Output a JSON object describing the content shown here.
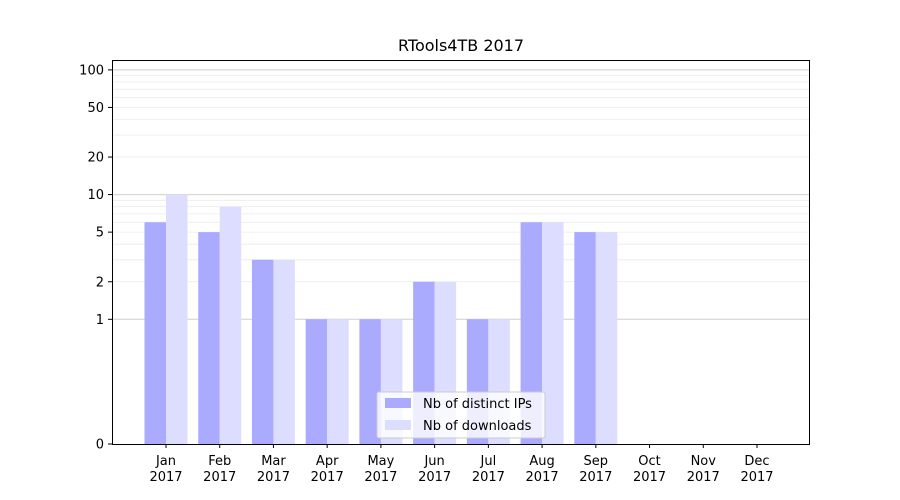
{
  "chart_data": {
    "type": "bar",
    "title": "RTools4TB 2017",
    "xlabel": "",
    "ylabel": "",
    "yscale": "symlog",
    "ylim": [
      0,
      120
    ],
    "y_ticks": [
      0,
      1,
      2,
      5,
      10,
      20,
      50,
      100
    ],
    "grid": "horizontal",
    "legend_position": "lower-center",
    "categories": [
      "Jan\n2017",
      "Feb\n2017",
      "Mar\n2017",
      "Apr\n2017",
      "May\n2017",
      "Jun\n2017",
      "Jul\n2017",
      "Aug\n2017",
      "Sep\n2017",
      "Oct\n2017",
      "Nov\n2017",
      "Dec\n2017"
    ],
    "series": [
      {
        "name": "Nb of distinct IPs",
        "color": "#aaaaff",
        "values": [
          6,
          5,
          3,
          1,
          1,
          2,
          1,
          6,
          5,
          0,
          0,
          0
        ]
      },
      {
        "name": "Nb of downloads",
        "color": "#ddddff",
        "values": [
          10,
          8,
          3,
          1,
          1,
          2,
          1,
          6,
          5,
          0,
          0,
          0
        ]
      }
    ]
  }
}
